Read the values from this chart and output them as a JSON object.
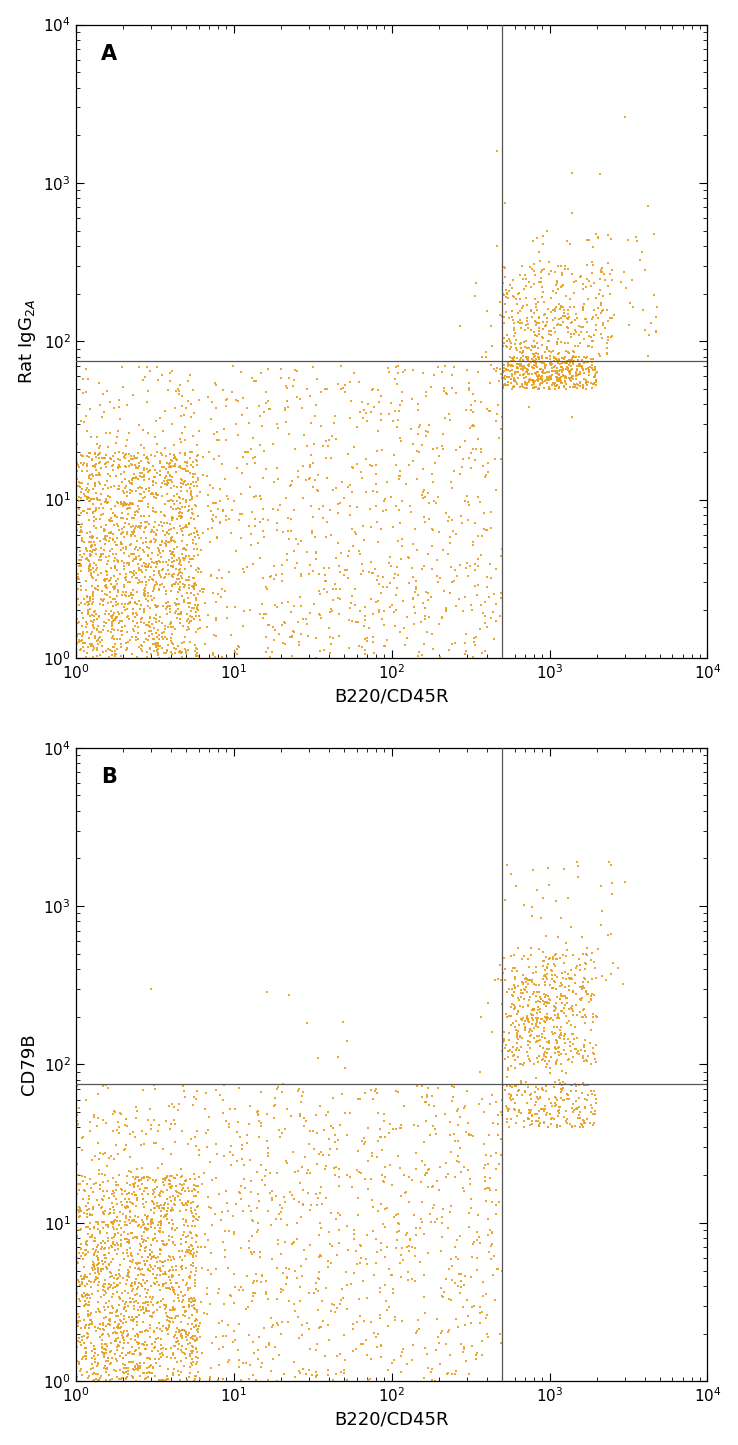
{
  "fig_width": 7.38,
  "fig_height": 14.45,
  "bg_color": "#ffffff",
  "dot_color": "#E8A020",
  "dot_size": 4.0,
  "dot_alpha": 0.9,
  "xlim": [
    1,
    10000
  ],
  "ylim": [
    1,
    10000
  ],
  "xlabel": "B220/CD45R",
  "panel_A_ylabel": "Rat IgG$_{2A}$",
  "panel_B_ylabel": "CD79B",
  "vline_x": 500,
  "hline_y": 75,
  "label_fontsize": 13,
  "tick_fontsize": 11,
  "panel_label_fontsize": 15,
  "seed_A": 42,
  "seed_B": 123
}
